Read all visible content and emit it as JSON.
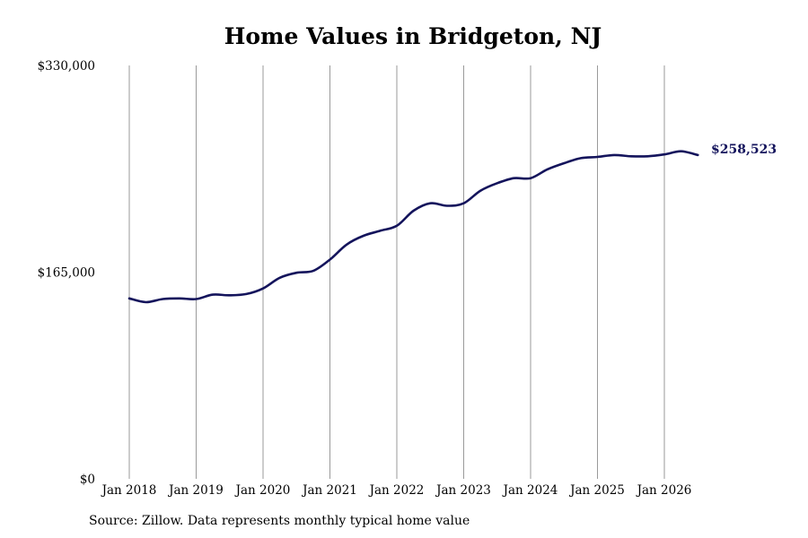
{
  "chart_data": {
    "type": "line",
    "title": "Home Values in Bridgeton, NJ",
    "xlabel": "",
    "ylabel": "",
    "ylim": [
      0,
      330000
    ],
    "y_ticks": [
      "$0",
      "$165,000",
      "$330,000"
    ],
    "y_tick_values": [
      0,
      165000,
      330000
    ],
    "x_ticks": [
      "Jan 2018",
      "Jan 2019",
      "Jan 2020",
      "Jan 2021",
      "Jan 2022",
      "Jan 2023",
      "Jan 2024",
      "Jan 2025",
      "Jan 2026"
    ],
    "grid": "vertical",
    "line_color": "#14145c",
    "end_label": "$258,523",
    "series": [
      {
        "values": [
          [
            2018.0,
            144000
          ],
          [
            2018.25,
            141000
          ],
          [
            2018.5,
            143500
          ],
          [
            2018.75,
            144000
          ],
          [
            2019.0,
            143500
          ],
          [
            2019.25,
            147000
          ],
          [
            2019.5,
            146500
          ],
          [
            2019.75,
            147500
          ],
          [
            2020.0,
            152000
          ],
          [
            2020.25,
            160500
          ],
          [
            2020.5,
            164500
          ],
          [
            2020.75,
            166000
          ],
          [
            2021.0,
            175000
          ],
          [
            2021.25,
            187000
          ],
          [
            2021.5,
            194000
          ],
          [
            2021.75,
            198000
          ],
          [
            2022.0,
            202000
          ],
          [
            2022.25,
            214000
          ],
          [
            2022.5,
            220000
          ],
          [
            2022.75,
            218000
          ],
          [
            2023.0,
            220000
          ],
          [
            2023.25,
            230000
          ],
          [
            2023.5,
            236000
          ],
          [
            2023.75,
            240000
          ],
          [
            2024.0,
            240000
          ],
          [
            2024.25,
            247000
          ],
          [
            2024.5,
            252000
          ],
          [
            2024.75,
            256000
          ],
          [
            2025.0,
            257000
          ],
          [
            2025.25,
            258500
          ],
          [
            2025.5,
            257500
          ],
          [
            2025.75,
            257500
          ],
          [
            2026.0,
            259000
          ],
          [
            2026.25,
            261500
          ],
          [
            2026.5,
            258523
          ]
        ]
      }
    ]
  },
  "footer": {
    "source": "Source: Zillow. Data represents monthly typical home value"
  }
}
